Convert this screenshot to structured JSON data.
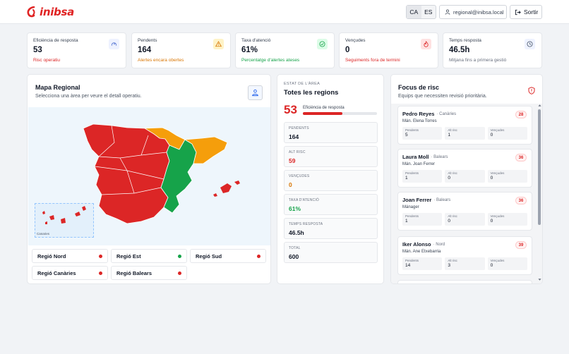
{
  "header": {
    "logo_text": "inibsa",
    "languages": [
      "CA",
      "ES"
    ],
    "user_email": "regional@inibsa.local",
    "logout_label": "Sortir"
  },
  "kpis": [
    {
      "label": "Eficiència de resposta",
      "value": "53",
      "sub": "Risc operatiu",
      "sub_color": "#dc2626",
      "icon": "gauge-icon"
    },
    {
      "label": "Pendents",
      "value": "164",
      "sub": "Alertes encara obertes",
      "sub_color": "#d97706",
      "icon": "warning-icon"
    },
    {
      "label": "Taxa d'atenció",
      "value": "61%",
      "sub": "Percentatge d'alertes ateses",
      "sub_color": "#16a34a",
      "icon": "check-circle-icon"
    },
    {
      "label": "Vençudes",
      "value": "0",
      "sub": "Seguiments fora de termini",
      "sub_color": "#dc2626",
      "icon": "flame-icon"
    },
    {
      "label": "Temps resposta",
      "value": "46.5h",
      "sub": "Mitjana fins a primera gestió",
      "sub_color": "#6b7280",
      "icon": "clock-icon"
    }
  ],
  "map": {
    "title": "Mapa Regional",
    "subtitle": "Selecciona una àrea per veure el detall operatiu.",
    "canaries_label": "Canaries",
    "colors": {
      "red": "#dc2626",
      "green": "#16a34a",
      "orange": "#f59e0b"
    },
    "regions": [
      {
        "label": "Regió Nord",
        "status_color": "#dc2626"
      },
      {
        "label": "Regió Est",
        "status_color": "#16a34a"
      },
      {
        "label": "Regió Sud",
        "status_color": "#dc2626"
      },
      {
        "label": "Regió Canàries",
        "status_color": "#dc2626"
      },
      {
        "label": "Regió Balears",
        "status_color": "#dc2626"
      }
    ]
  },
  "area": {
    "kicker": "Estat de l'àrea",
    "title": "Totes les regions",
    "score": "53",
    "score_label": "Eficiència de resposta",
    "score_fraction": 0.53,
    "stats": [
      {
        "label": "Pendents",
        "value": "164",
        "color": "#111827"
      },
      {
        "label": "Alt risc",
        "value": "59",
        "color": "#dc2626"
      },
      {
        "label": "Vençudes",
        "value": "0",
        "color": "#d97706"
      },
      {
        "label": "Taxa d'atenció",
        "value": "61%",
        "color": "#16a34a"
      },
      {
        "label": "Temps resposta",
        "value": "46.5h",
        "color": "#111827"
      },
      {
        "label": "Total",
        "value": "600",
        "color": "#111827"
      }
    ]
  },
  "risk": {
    "title": "Focus de risc",
    "subtitle": "Equips que necessiten revisió prioritària.",
    "stat_labels": [
      "Pendents",
      "Alt risc",
      "Vençudes"
    ],
    "cards": [
      {
        "name": "Pedro Reyes",
        "region": "· Canàries",
        "manager": "Mán. Elena Torres",
        "badge": "28",
        "stats": [
          "5",
          "1",
          "0"
        ]
      },
      {
        "name": "Laura Moll",
        "region": "· Balears",
        "manager": "Mán. Joan Ferrer",
        "badge": "36",
        "stats": [
          "1",
          "0",
          "0"
        ]
      },
      {
        "name": "Joan Ferrer",
        "region": "· Balears",
        "manager": "Mánager",
        "badge": "36",
        "stats": [
          "1",
          "0",
          "0"
        ]
      },
      {
        "name": "Iker Alonso",
        "region": "· Nord",
        "manager": "Mán. Ane Etxebarria",
        "badge": "39",
        "stats": [
          "14",
          "3",
          "0"
        ]
      }
    ]
  }
}
